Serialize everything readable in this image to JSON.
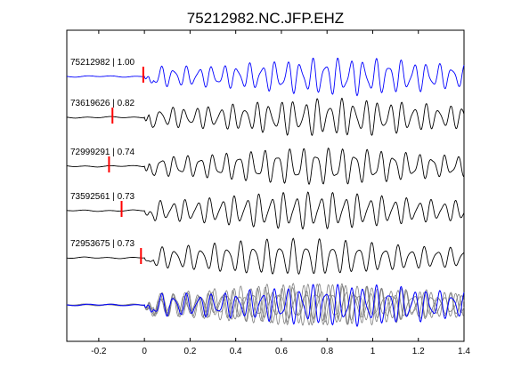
{
  "chart_data": {
    "type": "line",
    "title": "75212982.NC.JFP.EHZ",
    "xlabel": "",
    "ylabel": "",
    "xlim": [
      -0.34,
      1.4
    ],
    "x_ticks": [
      -0.2,
      0,
      0.2,
      0.4,
      0.6,
      0.8,
      1,
      1.2,
      1.4
    ],
    "x_tick_labels": [
      "-0.2",
      "0",
      "0.2",
      "0.4",
      "0.6",
      "0.8",
      "1",
      "1.2",
      "1.4"
    ],
    "grid": false,
    "legend": "none",
    "series": [
      {
        "label": "75212982 | 1.00",
        "color": "#0000ff",
        "pick_x": -0.005,
        "onset_x": 0.0
      },
      {
        "label": "73619626 | 0.82",
        "color": "#000000",
        "pick_x": -0.14,
        "onset_x": 0.0
      },
      {
        "label": "72999291 | 0.74",
        "color": "#000000",
        "pick_x": -0.155,
        "onset_x": 0.0
      },
      {
        "label": "73592561 | 0.73",
        "color": "#000000",
        "pick_x": -0.1,
        "onset_x": 0.0
      },
      {
        "label": "72953675 | 0.73",
        "color": "#000000",
        "pick_x": -0.015,
        "onset_x": 0.0
      }
    ],
    "stack": {
      "label": "",
      "overlay_colors": [
        "#808080",
        "#0000ff"
      ]
    },
    "pick_color": "#ff0000"
  }
}
